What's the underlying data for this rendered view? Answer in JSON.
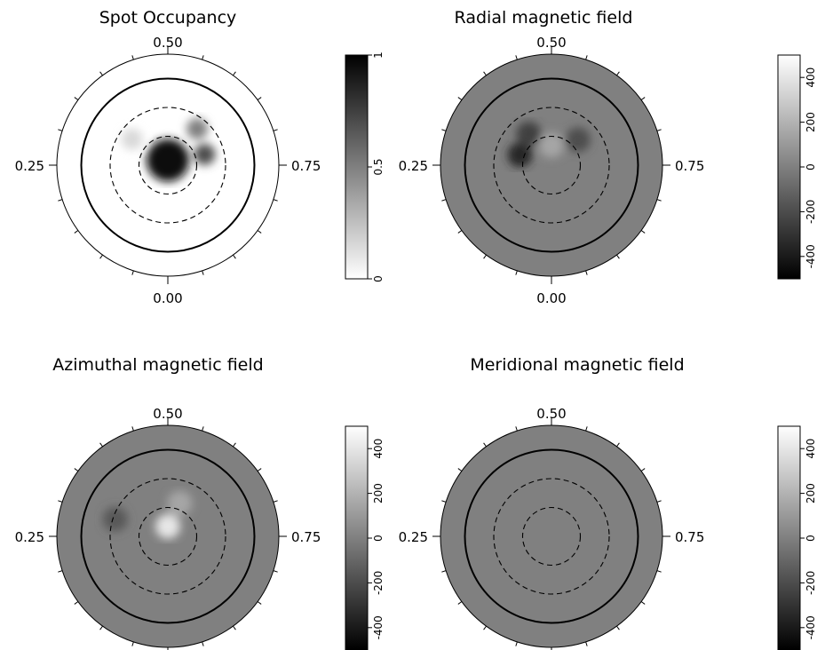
{
  "chart_data": [
    {
      "type": "heatmap",
      "title": "Spot Occupancy",
      "phase_labels": {
        "top": "0.50",
        "left": "0.25",
        "right": "0.75",
        "bottom": "0.00"
      },
      "colorbar": {
        "range": [
          0,
          1
        ],
        "ticks": [
          "0",
          "0.5",
          "1"
        ],
        "colormap": "white-to-black"
      },
      "background": "white",
      "features": [
        {
          "phase": 0.5,
          "latitude": 85,
          "value": 0.95
        },
        {
          "phase": 0.7,
          "latitude": 55,
          "value": 0.7
        },
        {
          "phase": 0.6,
          "latitude": 45,
          "value": 0.5
        },
        {
          "phase": 0.35,
          "latitude": 50,
          "value": 0.15
        }
      ]
    },
    {
      "type": "heatmap",
      "title": "Radial magnetic field",
      "phase_labels": {
        "top": "0.50",
        "left": "0.25",
        "right": "0.75",
        "bottom": "0.00"
      },
      "colorbar": {
        "range": [
          -500,
          500
        ],
        "ticks": [
          "-400",
          "-200",
          "0",
          "200",
          "400"
        ],
        "colormap": "black-to-white"
      },
      "background_value": 0,
      "features": [
        {
          "phase": 0.3,
          "latitude": 60,
          "value": -350
        },
        {
          "phase": 0.4,
          "latitude": 55,
          "value": -250
        },
        {
          "phase": 0.62,
          "latitude": 55,
          "value": -200
        },
        {
          "phase": 0.5,
          "latitude": 70,
          "value": 150
        }
      ]
    },
    {
      "type": "heatmap",
      "title": "Azimuthal magnetic field",
      "phase_labels": {
        "top": "0.50",
        "left": "0.25",
        "right": "0.75",
        "bottom": "0.00"
      },
      "colorbar": {
        "range": [
          -500,
          500
        ],
        "ticks": [
          "-400",
          "-200",
          "0",
          "200",
          "400"
        ],
        "colormap": "black-to-white"
      },
      "background_value": 0,
      "features": [
        {
          "phase": 0.5,
          "latitude": 80,
          "value": 400
        },
        {
          "phase": 0.3,
          "latitude": 40,
          "value": -150
        },
        {
          "phase": 0.55,
          "latitude": 55,
          "value": 150
        }
      ]
    },
    {
      "type": "heatmap",
      "title": "Meridional magnetic field",
      "phase_labels": {
        "top": "0.50",
        "left": "0.25",
        "right": "0.75",
        "bottom": "0.00"
      },
      "colorbar": {
        "range": [
          -500,
          500
        ],
        "ticks": [
          "-400",
          "-200",
          "0",
          "200",
          "400"
        ],
        "colormap": "black-to-white"
      },
      "background_value": 0,
      "features": []
    }
  ]
}
